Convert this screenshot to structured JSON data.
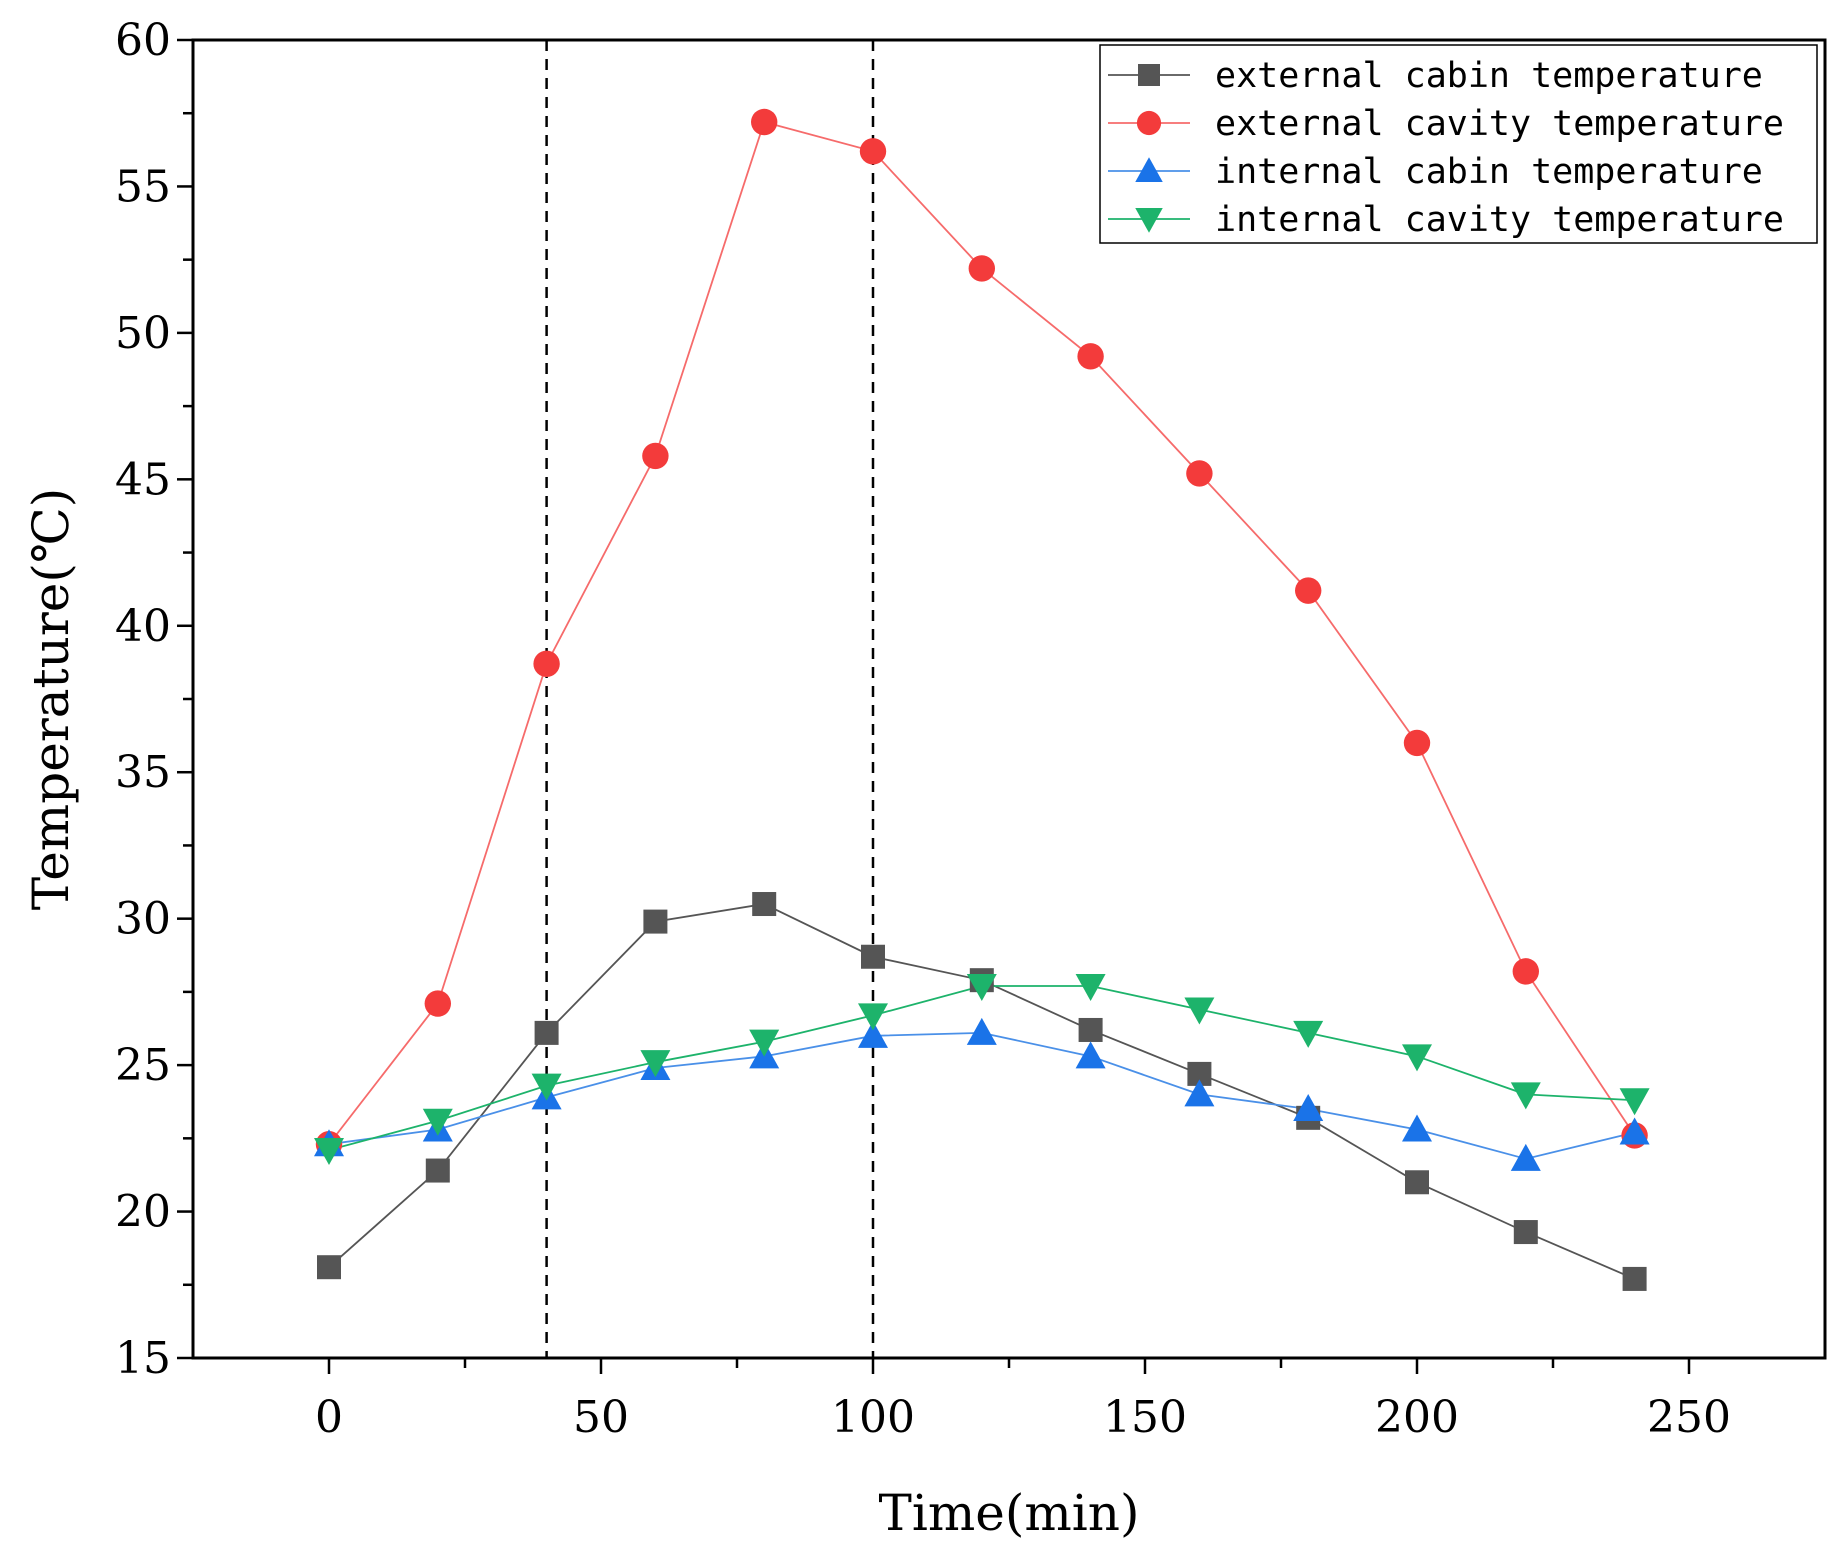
{
  "chart_data": {
    "type": "line",
    "title": "",
    "xlabel": "Time(min)",
    "ylabel": "Temperature(℃)",
    "xlim": [
      -25,
      275
    ],
    "ylim": [
      15,
      60
    ],
    "xticks": [
      0,
      50,
      100,
      150,
      200,
      250
    ],
    "yticks": [
      15,
      20,
      25,
      30,
      35,
      40,
      45,
      50,
      55,
      60
    ],
    "x_minor_step": 25,
    "y_minor_step": 2.5,
    "reference_lines_x": [
      40,
      100
    ],
    "grid": false,
    "legend_position": "top-right",
    "x": [
      0,
      20,
      40,
      60,
      80,
      100,
      120,
      140,
      160,
      180,
      200,
      220,
      240
    ],
    "series": [
      {
        "name": "external cabin temperature",
        "color": "#555555",
        "line_color": "#555555",
        "marker": "square",
        "values": [
          18.1,
          21.4,
          26.1,
          29.9,
          30.5,
          28.7,
          27.9,
          26.2,
          24.7,
          23.2,
          21.0,
          19.3,
          17.7
        ]
      },
      {
        "name": "external cavity temperature",
        "color": "#f33b3b",
        "line_color": "#f66b6b",
        "marker": "circle",
        "values": [
          22.3,
          27.1,
          38.7,
          45.8,
          57.2,
          56.2,
          52.2,
          49.2,
          45.2,
          41.2,
          36.0,
          28.2,
          22.6
        ]
      },
      {
        "name": "internal cabin temperature",
        "color": "#1a73e8",
        "line_color": "#4a90e8",
        "marker": "triangle-up",
        "values": [
          22.3,
          22.8,
          23.9,
          24.9,
          25.3,
          26.0,
          26.1,
          25.3,
          24.0,
          23.5,
          22.8,
          21.8,
          22.7
        ]
      },
      {
        "name": "internal cavity temperature",
        "color": "#1db36b",
        "line_color": "#1db36b",
        "marker": "triangle-down",
        "values": [
          22.1,
          23.1,
          24.3,
          25.1,
          25.8,
          26.7,
          27.7,
          27.7,
          26.9,
          26.1,
          25.3,
          24.0,
          23.8
        ]
      }
    ]
  }
}
